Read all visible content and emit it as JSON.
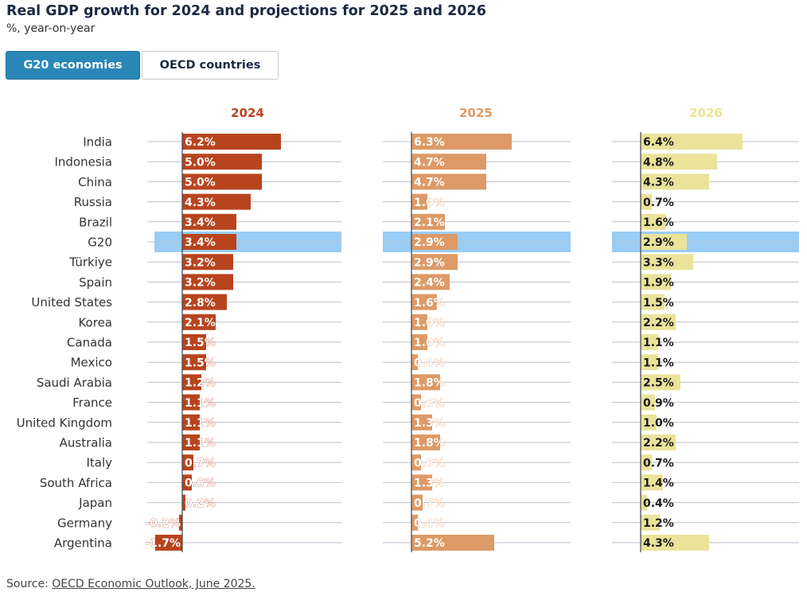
{
  "header": {
    "title": "Real GDP growth for 2024 and projections for 2025 and 2026",
    "subtitle": "%, year-on-year"
  },
  "tabs": [
    {
      "label": "G20 economies",
      "active": true
    },
    {
      "label": "OECD countries",
      "active": false
    }
  ],
  "chart_data": {
    "type": "bar",
    "orientation": "horizontal",
    "categories": [
      "India",
      "Indonesia",
      "China",
      "Russia",
      "Brazil",
      "G20",
      "Türkiye",
      "Spain",
      "United States",
      "Korea",
      "Canada",
      "Mexico",
      "Saudi Arabia",
      "France",
      "United Kingdom",
      "Australia",
      "Italy",
      "South Africa",
      "Japan",
      "Germany",
      "Argentina"
    ],
    "highlight": "G20",
    "highlight_color": "#9acdf5",
    "series": [
      {
        "name": "2024",
        "color": "#b8441e",
        "label_color": "#ffffff",
        "values": [
          6.2,
          5.0,
          5.0,
          4.3,
          3.4,
          3.4,
          3.2,
          3.2,
          2.8,
          2.1,
          1.5,
          1.5,
          1.2,
          1.1,
          1.1,
          1.1,
          0.7,
          0.6,
          0.2,
          -0.2,
          -1.7
        ],
        "labels": [
          "6.2%",
          "5.0%",
          "5.0%",
          "4.3%",
          "3.4%",
          "3.4%",
          "3.2%",
          "3.2%",
          "2.8%",
          "2.1%",
          "1.5%",
          "1.5%",
          "1.2%",
          "1.1%",
          "1.1%",
          "1.1%",
          "0.7%",
          "0.6%",
          "0.2%",
          "-0.2%",
          "-1.7%"
        ]
      },
      {
        "name": "2025",
        "color": "#dd9a66",
        "label_color": "#ffffff",
        "values": [
          6.3,
          4.7,
          4.7,
          1.0,
          2.1,
          2.9,
          2.9,
          2.4,
          1.6,
          1.0,
          1.0,
          0.4,
          1.8,
          0.6,
          1.3,
          1.8,
          0.6,
          1.3,
          0.7,
          0.4,
          5.2
        ],
        "labels": [
          "6.3%",
          "4.7%",
          "4.7%",
          "1.0%",
          "2.1%",
          "2.9%",
          "2.9%",
          "2.4%",
          "1.6%",
          "1.0%",
          "1.0%",
          "0.4%",
          "1.8%",
          "0.6%",
          "1.3%",
          "1.8%",
          "0.6%",
          "1.3%",
          "0.7%",
          "0.4%",
          "5.2%"
        ]
      },
      {
        "name": "2026",
        "color": "#ebe39a",
        "label_color": "#1a1a1a",
        "values": [
          6.4,
          4.8,
          4.3,
          0.7,
          1.6,
          2.9,
          3.3,
          1.9,
          1.5,
          2.2,
          1.1,
          1.1,
          2.5,
          0.9,
          1.0,
          2.2,
          0.7,
          1.4,
          0.4,
          1.2,
          4.3
        ],
        "labels": [
          "6.4%",
          "4.8%",
          "4.3%",
          "0.7%",
          "1.6%",
          "2.9%",
          "3.3%",
          "1.9%",
          "1.5%",
          "2.2%",
          "1.1%",
          "1.1%",
          "2.5%",
          "0.9%",
          "1.0%",
          "2.2%",
          "0.7%",
          "1.4%",
          "0.4%",
          "1.2%",
          "4.3%"
        ]
      }
    ],
    "gridlines": true
  },
  "source": {
    "prefix": "Source: ",
    "link_text": "OECD Economic Outlook, June 2025."
  }
}
